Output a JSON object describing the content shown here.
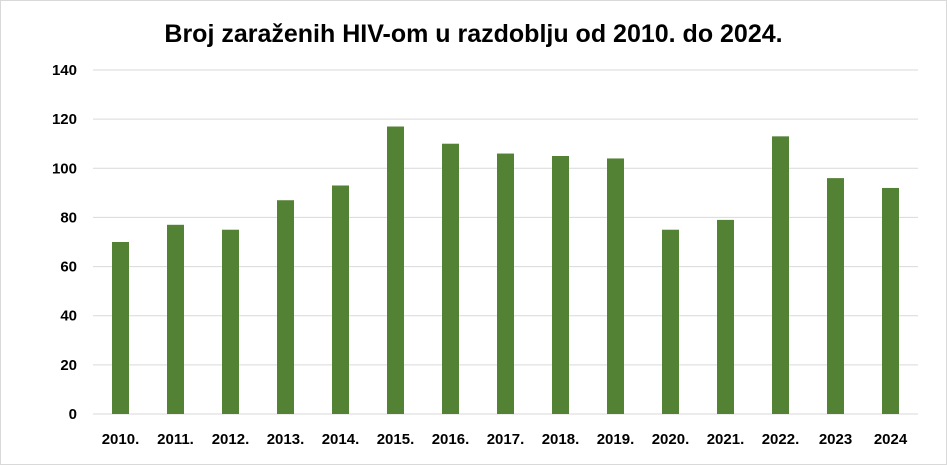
{
  "chart_data": {
    "type": "bar",
    "title": "Broj zaraženih HIV-om u razdoblju od 2010. do 2024.",
    "xlabel": "",
    "ylabel": "",
    "categories": [
      "2010.",
      "2011.",
      "2012.",
      "2013.",
      "2014.",
      "2015.",
      "2016.",
      "2017.",
      "2018.",
      "2019.",
      "2020.",
      "2021.",
      "2022.",
      "2023",
      "2024"
    ],
    "values": [
      70,
      77,
      75,
      87,
      93,
      117,
      110,
      106,
      105,
      104,
      75,
      79,
      113,
      96,
      92
    ],
    "ylim": [
      0,
      140
    ],
    "yticks": [
      0,
      20,
      40,
      60,
      80,
      100,
      120,
      140
    ],
    "grid": true,
    "legend": "none",
    "bar_color": "#548235",
    "grid_color": "#d9d9d9"
  }
}
